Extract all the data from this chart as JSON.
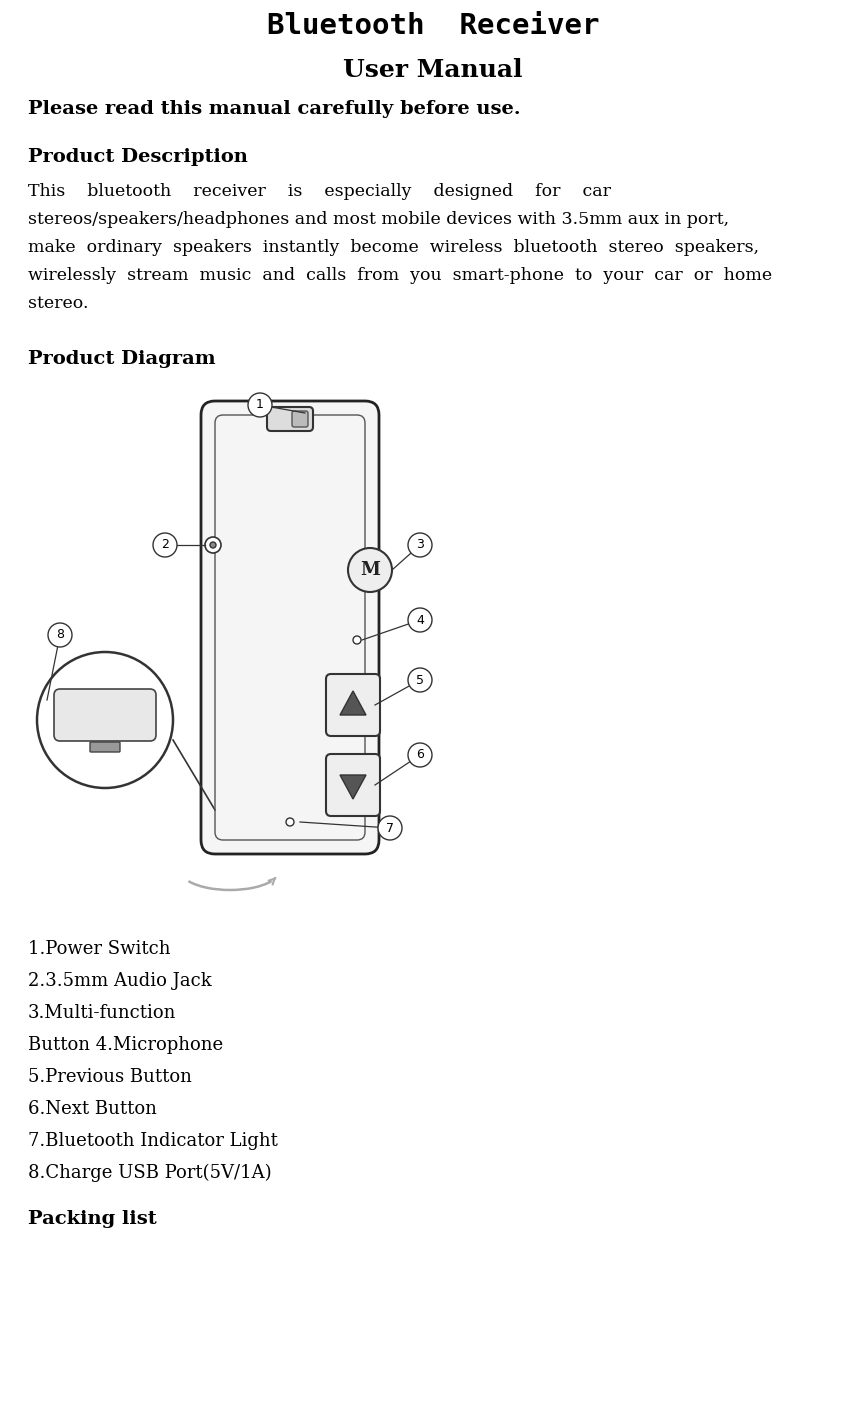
{
  "title": "Bluetooth  Receiver",
  "subtitle": "User Manual",
  "warning": "Please read this manual carefully before use.",
  "section1_title": "Product Description",
  "section2_title": "Product Diagram",
  "parts_list": [
    "1.Power Switch",
    "2.3.5mm Audio Jack",
    "3.Multi-function",
    "Button 4.Microphone",
    "5.Previous Button",
    "6.Next Button",
    "7.Bluetooth Indicator Light",
    "8.Charge USB Port(5V/1A)"
  ],
  "section3_title": "Packing list",
  "bg_color": "#ffffff",
  "text_color": "#000000"
}
